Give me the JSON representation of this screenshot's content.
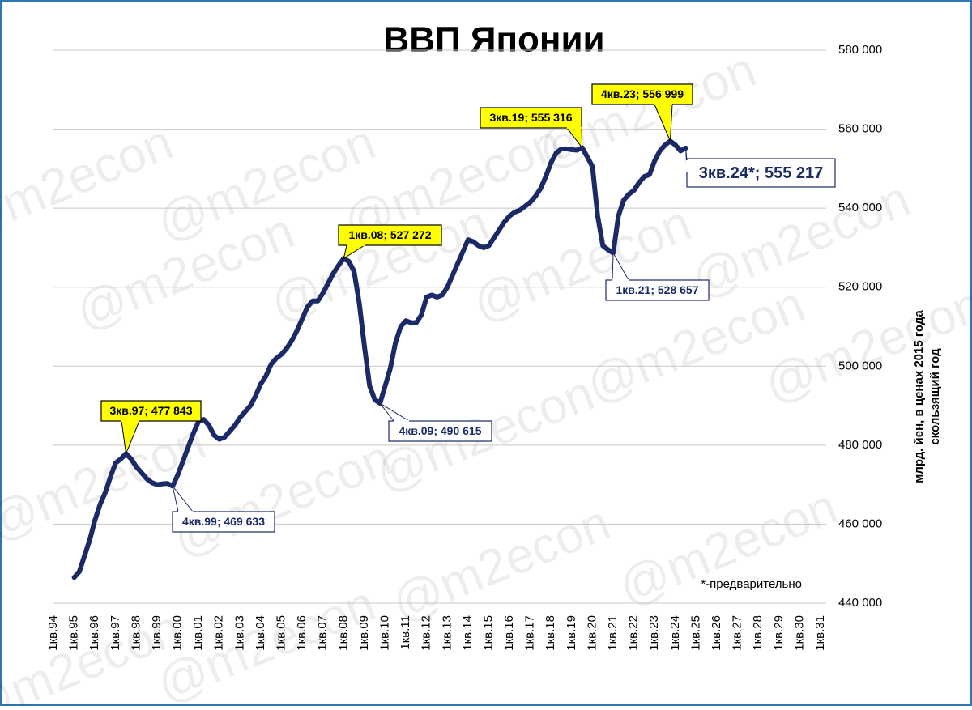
{
  "chart_data": {
    "type": "line",
    "title": "ВВП Японии",
    "y_axis_label": [
      "млрд. йен, в ценах 2015 года",
      "скользящий год"
    ],
    "note": "*-предварительно",
    "watermark": "@m2econ",
    "categories": [
      "1кв.94",
      null,
      null,
      null,
      "1кв.95",
      null,
      null,
      null,
      "1кв.96",
      null,
      null,
      null,
      "1кв.97",
      null,
      null,
      null,
      "1кв.98",
      null,
      null,
      null,
      "1кв.99",
      null,
      null,
      null,
      "1кв.00",
      null,
      null,
      null,
      "1кв.01",
      null,
      null,
      null,
      "1кв.02",
      null,
      null,
      null,
      "1кв.03",
      null,
      null,
      null,
      "1кв.04",
      null,
      null,
      null,
      "1кв.05",
      null,
      null,
      null,
      "1кв.06",
      null,
      null,
      null,
      "1кв.07",
      null,
      null,
      null,
      "1кв.08",
      null,
      null,
      null,
      "1кв.09",
      null,
      null,
      null,
      "1кв.10",
      null,
      null,
      null,
      "1кв.11",
      null,
      null,
      null,
      "1кв.12",
      null,
      null,
      null,
      "1кв.13",
      null,
      null,
      null,
      "1кв.14",
      null,
      null,
      null,
      "1кв.15",
      null,
      null,
      null,
      "1кв.16",
      null,
      null,
      null,
      "1кв.17",
      null,
      null,
      null,
      "1кв.18",
      null,
      null,
      null,
      "1кв.19",
      null,
      null,
      null,
      "1кв.20",
      null,
      null,
      null,
      "1кв.21",
      null,
      null,
      null,
      "1кв.22",
      null,
      null,
      null,
      "1кв.23",
      null,
      null,
      null,
      "1кв.24",
      null,
      null,
      null,
      "1кв.25",
      null,
      null,
      null,
      "1кв.26",
      null,
      null,
      null,
      "1кв.27",
      null,
      null,
      null,
      "1кв.28",
      null,
      null,
      null,
      "1кв.29",
      null,
      null,
      null,
      "1кв.30",
      null,
      null,
      null,
      "1кв.31"
    ],
    "series": [
      {
        "name": "ВВП",
        "color": "#1b2a66",
        "values": [
          null,
          null,
          null,
          null,
          446500,
          448000,
          452000,
          456000,
          461000,
          465000,
          468000,
          472000,
          475500,
          476500,
          477843,
          476500,
          474500,
          473000,
          471500,
          470500,
          470000,
          470200,
          470300,
          469633,
          472500,
          476000,
          479500,
          483000,
          486000,
          486500,
          485000,
          482500,
          481500,
          482000,
          483500,
          485000,
          487000,
          488500,
          490000,
          492500,
          495500,
          497500,
          500500,
          502000,
          503000,
          504500,
          506500,
          509000,
          512000,
          515000,
          516500,
          516500,
          518500,
          521000,
          523500,
          525500,
          527272,
          526500,
          524000,
          516000,
          505000,
          495000,
          491500,
          490615,
          495000,
          499500,
          506000,
          510000,
          511500,
          511000,
          511000,
          513000,
          517500,
          518000,
          517500,
          518000,
          520000,
          523000,
          526000,
          529000,
          532000,
          531500,
          530500,
          530000,
          530500,
          532500,
          534500,
          536500,
          538000,
          539000,
          539500,
          540500,
          541500,
          543000,
          545000,
          548000,
          551500,
          554000,
          555000,
          555000,
          554800,
          554700,
          555316,
          553000,
          550500,
          538000,
          530500,
          529500,
          528657,
          538000,
          542000,
          543500,
          544500,
          546500,
          548000,
          548500,
          552000,
          554500,
          556000,
          556999,
          556000,
          554500,
          555217,
          null,
          null,
          null,
          null,
          null,
          null,
          null,
          null,
          null,
          null,
          null,
          null,
          null,
          null,
          null,
          null,
          null,
          null,
          null,
          null,
          null,
          null,
          null,
          null,
          null,
          null
        ]
      }
    ],
    "ylim": [
      440000,
      580000
    ],
    "yticks": [
      {
        "value": 440000,
        "label": "440 000"
      },
      {
        "value": 460000,
        "label": "460 000"
      },
      {
        "value": 480000,
        "label": "480 000"
      },
      {
        "value": 500000,
        "label": "500 000"
      },
      {
        "value": 520000,
        "label": "520 000"
      },
      {
        "value": 540000,
        "label": "540 000"
      },
      {
        "value": 560000,
        "label": "560 000"
      },
      {
        "value": 580000,
        "label": "580 000"
      }
    ],
    "grid": true,
    "annotations": [
      "3кв.97; 477 843",
      "4кв.99; 469 633",
      "1кв.08; 527 272",
      "4кв.09; 490 615",
      "3кв.19; 555 316",
      "4кв.23; 556 999",
      "1кв.21; 528 657",
      "3кв.24*; 555 217"
    ]
  }
}
